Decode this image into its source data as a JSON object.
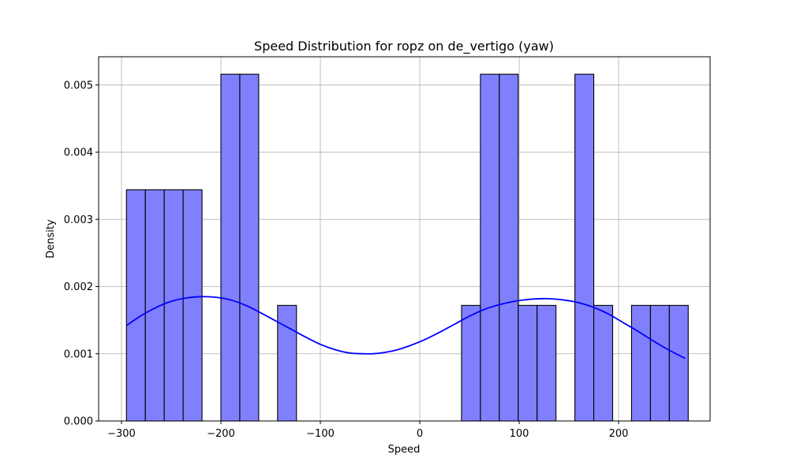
{
  "chart_data": {
    "type": "histogram",
    "title": "Speed Distribution for ropz on de_vertigo (yaw)",
    "xlabel": "Speed",
    "ylabel": "Density",
    "xlim": [
      -323,
      292
    ],
    "ylim": [
      0,
      0.00542
    ],
    "x_ticks": [
      -300,
      -200,
      -100,
      0,
      100,
      200
    ],
    "x_tick_labels": [
      "−300",
      "−200",
      "−100",
      "0",
      "100",
      "200"
    ],
    "y_ticks": [
      0,
      0.001,
      0.002,
      0.003,
      0.004,
      0.005
    ],
    "y_tick_labels": [
      "0.000",
      "0.001",
      "0.002",
      "0.003",
      "0.004",
      "0.005"
    ],
    "grid": true,
    "bar_color": "#8080ff",
    "bar_edge_color": "#000000",
    "kde_color": "#0000ff",
    "bins": [
      {
        "start": -295,
        "end": -276,
        "density": 0.00344
      },
      {
        "start": -276,
        "end": -257,
        "density": 0.00344
      },
      {
        "start": -257,
        "end": -238,
        "density": 0.00344
      },
      {
        "start": -238,
        "end": -219,
        "density": 0.00344
      },
      {
        "start": -200,
        "end": -181,
        "density": 0.00516
      },
      {
        "start": -181,
        "end": -162,
        "density": 0.00516
      },
      {
        "start": -143,
        "end": -124,
        "density": 0.00172
      },
      {
        "start": 42,
        "end": 61,
        "density": 0.00172
      },
      {
        "start": 61,
        "end": 80,
        "density": 0.00516
      },
      {
        "start": 80,
        "end": 99,
        "density": 0.00516
      },
      {
        "start": 99,
        "end": 118,
        "density": 0.00172
      },
      {
        "start": 118,
        "end": 137,
        "density": 0.00172
      },
      {
        "start": 156,
        "end": 175,
        "density": 0.00516
      },
      {
        "start": 175,
        "end": 194,
        "density": 0.00172
      },
      {
        "start": 213,
        "end": 232,
        "density": 0.00172
      },
      {
        "start": 232,
        "end": 251,
        "density": 0.00172
      },
      {
        "start": 251,
        "end": 270,
        "density": 0.00172
      }
    ],
    "kde": {
      "x": [
        -295,
        -280,
        -265,
        -250,
        -235,
        -220,
        -205,
        -190,
        -175,
        -160,
        -145,
        -130,
        -115,
        -100,
        -85,
        -70,
        -55,
        -48,
        -40,
        -25,
        -10,
        5,
        20,
        35,
        50,
        65,
        80,
        95,
        110,
        128,
        145,
        160,
        175,
        190,
        205,
        220,
        235,
        250,
        267
      ],
      "y": [
        0.00142,
        0.00157,
        0.00169,
        0.00178,
        0.00183,
        0.00185,
        0.00184,
        0.0018,
        0.00172,
        0.00161,
        0.00149,
        0.00137,
        0.00125,
        0.00114,
        0.00106,
        0.00101,
        0.001,
        0.001,
        0.00101,
        0.00105,
        0.00112,
        0.00121,
        0.00132,
        0.00144,
        0.00156,
        0.00166,
        0.00173,
        0.00178,
        0.00181,
        0.00182,
        0.0018,
        0.00176,
        0.00169,
        0.00159,
        0.00146,
        0.00133,
        0.00119,
        0.00106,
        0.00093
      ]
    }
  }
}
